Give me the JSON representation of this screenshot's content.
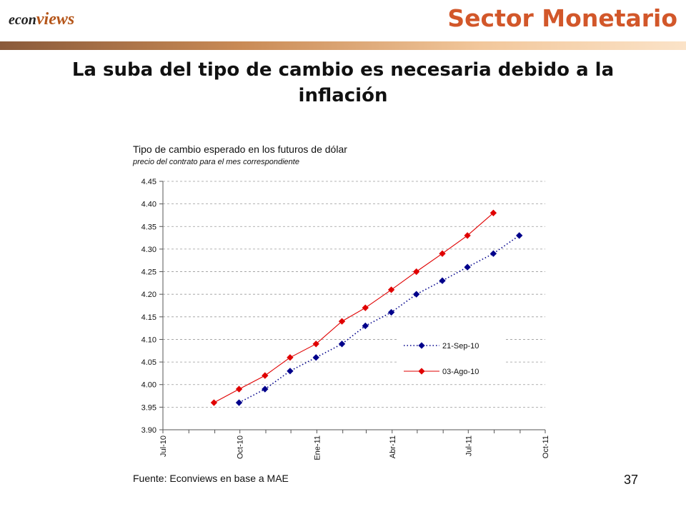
{
  "header": {
    "logo_main": "econ",
    "logo_sub": "views",
    "section": "Sector Monetario"
  },
  "slide": {
    "title": "La suba del tipo de cambio es necesaria debido a la inflación",
    "page_number": "37"
  },
  "colors": {
    "accent": "#d2572a",
    "series_sep": "#00008b",
    "series_ago": "#e00000"
  },
  "chart_data": {
    "type": "line",
    "title": "Tipo de cambio esperado en los futuros de dólar",
    "subtitle": "precio del contrato para el mes correspondiente",
    "source": "Fuente: Econviews en base a MAE",
    "xlabel": "",
    "ylabel": "",
    "x_ticks": [
      "Jul-10",
      "Oct-10",
      "Ene-11",
      "Abr-11",
      "Jul-11",
      "Oct-11"
    ],
    "x_range": [
      "2010-07-01",
      "2011-10-01"
    ],
    "y_ticks": [
      "3.90",
      "3.95",
      "4.00",
      "4.05",
      "4.10",
      "4.15",
      "4.20",
      "4.25",
      "4.30",
      "4.35",
      "4.40",
      "4.45"
    ],
    "ylim": [
      3.9,
      4.45
    ],
    "grid": true,
    "legend_position": "right",
    "series": [
      {
        "name": "21-Sep-10",
        "style": "dotted",
        "color": "#00008b",
        "points": [
          {
            "x": "2010-09-30",
            "y": 3.96
          },
          {
            "x": "2010-10-31",
            "y": 3.99
          },
          {
            "x": "2010-11-30",
            "y": 4.03
          },
          {
            "x": "2010-12-31",
            "y": 4.06
          },
          {
            "x": "2011-01-31",
            "y": 4.09
          },
          {
            "x": "2011-02-28",
            "y": 4.13
          },
          {
            "x": "2011-03-31",
            "y": 4.16
          },
          {
            "x": "2011-04-30",
            "y": 4.2
          },
          {
            "x": "2011-05-31",
            "y": 4.23
          },
          {
            "x": "2011-06-30",
            "y": 4.26
          },
          {
            "x": "2011-07-31",
            "y": 4.29
          },
          {
            "x": "2011-08-31",
            "y": 4.33
          }
        ]
      },
      {
        "name": "03-Ago-10",
        "style": "solid",
        "color": "#e00000",
        "points": [
          {
            "x": "2010-08-31",
            "y": 3.96
          },
          {
            "x": "2010-09-30",
            "y": 3.99
          },
          {
            "x": "2010-10-31",
            "y": 4.02
          },
          {
            "x": "2010-11-30",
            "y": 4.06
          },
          {
            "x": "2010-12-31",
            "y": 4.09
          },
          {
            "x": "2011-01-31",
            "y": 4.14
          },
          {
            "x": "2011-02-28",
            "y": 4.17
          },
          {
            "x": "2011-03-31",
            "y": 4.21
          },
          {
            "x": "2011-04-30",
            "y": 4.25
          },
          {
            "x": "2011-05-31",
            "y": 4.29
          },
          {
            "x": "2011-06-30",
            "y": 4.33
          },
          {
            "x": "2011-07-31",
            "y": 4.38
          }
        ]
      }
    ]
  }
}
